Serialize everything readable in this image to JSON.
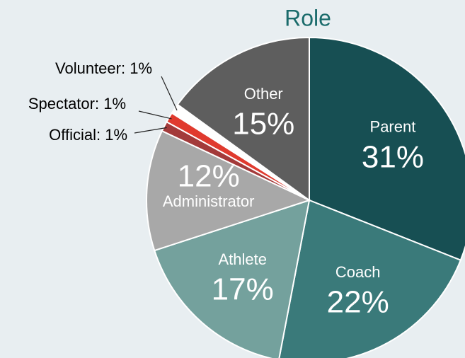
{
  "chart_data": {
    "type": "pie",
    "title": "Role",
    "categories": [
      "Parent",
      "Coach",
      "Athlete",
      "Administrator",
      "Official",
      "Spectator",
      "Volunteer",
      "Other"
    ],
    "values": [
      31,
      22,
      17,
      12,
      1,
      1,
      1,
      15
    ],
    "value_labels": [
      "31%",
      "22%",
      "17%",
      "12%",
      "Official: 1%",
      "Spectator: 1%",
      "Volunteer: 1%",
      "15%"
    ],
    "colors": [
      "#174f53",
      "#3a7a7a",
      "#74a19d",
      "#a8a8a8",
      "#a33a3a",
      "#e03a2e",
      "#ffffff",
      "#5e5e5e"
    ]
  }
}
